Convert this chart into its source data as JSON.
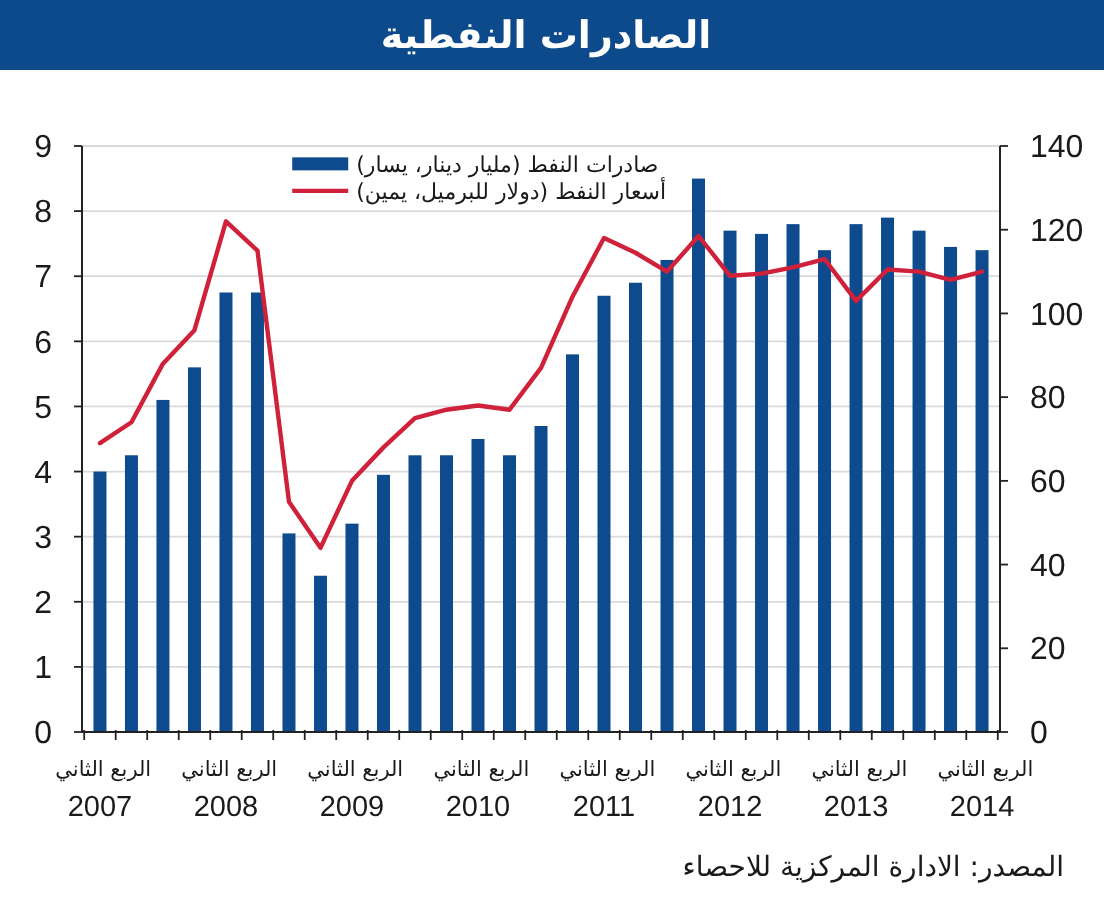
{
  "chart_data": {
    "type": "bar",
    "title": "الصادرات النفطية",
    "categories": [
      "الربع الثاني 2007",
      null,
      null,
      null,
      "الربع الثاني 2008",
      null,
      null,
      null,
      "الربع الثاني 2009",
      null,
      null,
      null,
      "الربع الثاني 2010",
      null,
      null,
      null,
      "الربع الثاني 2011",
      null,
      null,
      null,
      "الربع الثاني 2012",
      null,
      null,
      null,
      "الربع الثاني 2013",
      null,
      null,
      null,
      "الربع الثاني 2014"
    ],
    "series": [
      {
        "name": "صادرات النفط (مليار دينار، يسار)",
        "color": "#0e4b8e",
        "values": [
          4.0,
          4.25,
          5.1,
          5.6,
          6.75,
          6.75,
          3.05,
          2.4,
          3.2,
          3.95,
          4.25,
          4.25,
          4.5,
          4.25,
          4.7,
          5.8,
          6.7,
          6.9,
          7.25,
          8.5,
          7.7,
          7.65,
          7.8,
          7.4,
          7.8,
          7.9,
          7.7,
          7.45,
          7.4
        ]
      },
      {
        "name": "أسعار النفط (دولار للبرميل، يمين)",
        "type": "line",
        "axis": "y2",
        "color": "#d0213b",
        "values": [
          69,
          74,
          88,
          96,
          122,
          115,
          55,
          44,
          60,
          68,
          75,
          77,
          78,
          77,
          87,
          104,
          118,
          114.5,
          110,
          118.5,
          109,
          109.5,
          111,
          113,
          103,
          110.5,
          110,
          108,
          110
        ]
      }
    ],
    "ylim": [
      0,
      9
    ],
    "yticks": [
      0,
      1,
      2,
      3,
      4,
      5,
      6,
      7,
      8,
      9
    ],
    "y2lim": [
      0,
      140
    ],
    "y2ticks": [
      0,
      20,
      40,
      60,
      80,
      100,
      120,
      140
    ],
    "grid": "y",
    "legend": "top",
    "annotations": [
      "المصدر: الادارة المركزية للاحصاء"
    ]
  }
}
